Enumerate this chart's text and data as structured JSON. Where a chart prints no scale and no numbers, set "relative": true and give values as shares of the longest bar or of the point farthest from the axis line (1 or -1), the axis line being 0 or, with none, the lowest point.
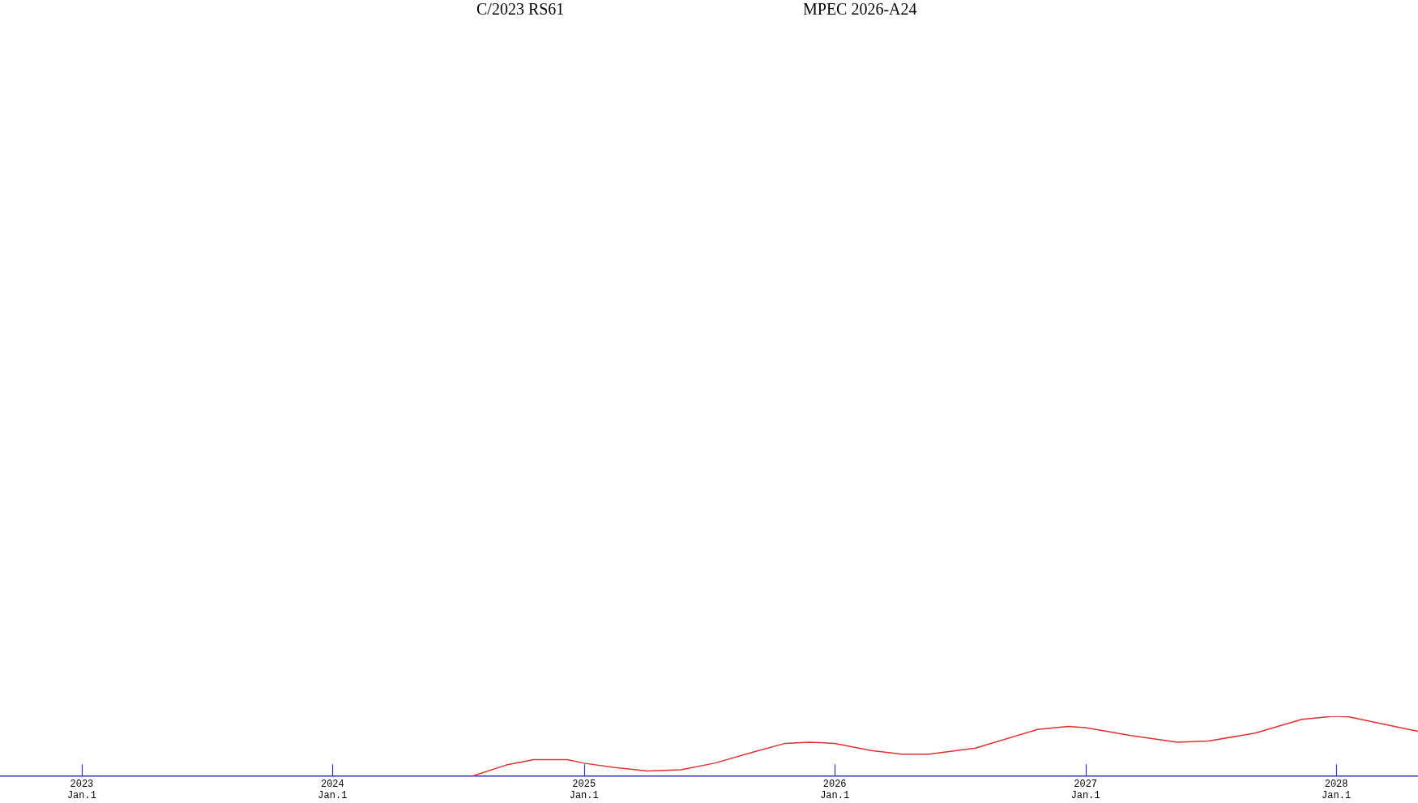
{
  "chart_data": {
    "type": "line",
    "title": "C/2023 RS61",
    "subtitle": "MPEC 2026-A24",
    "relative": true,
    "grid": false,
    "legend": false,
    "marker": "none",
    "line_style": "solid",
    "tick_labels": "x",
    "x": [
      "2024-07-21",
      "2024-09-10",
      "2024-10-20",
      "2024-12-08",
      "2025-01-01",
      "2025-02-13",
      "2025-04-03",
      "2025-05-22",
      "2025-07-10",
      "2025-09-06",
      "2025-10-21",
      "2025-11-25",
      "2026-01-01",
      "2026-02-23",
      "2026-04-09",
      "2026-05-18",
      "2026-07-25",
      "2026-10-23",
      "2026-12-07",
      "2027-01-01",
      "2027-03-08",
      "2027-05-15",
      "2027-06-29",
      "2027-09-05",
      "2027-11-12",
      "2027-12-28",
      "2028-01-20",
      "2028-03-06",
      "2028-04-29"
    ],
    "series": [
      {
        "color": "#e03030",
        "values": [
          0,
          0.19,
          0.28,
          0.28,
          0.22,
          0.15,
          0.09,
          0.11,
          0.22,
          0.41,
          0.55,
          0.57,
          0.55,
          0.43,
          0.37,
          0.37,
          0.47,
          0.78,
          0.83,
          0.81,
          0.68,
          0.57,
          0.59,
          0.72,
          0.95,
          1,
          0.99,
          0.88,
          0.75
        ]
      }
    ],
    "xlim": [
      "2022-09-04",
      "2028-04-29"
    ],
    "xticks": [
      {
        "value": "2023-01-01",
        "label": "2023\nJan.1"
      },
      {
        "value": "2024-01-01",
        "label": "2024\nJan.1"
      },
      {
        "value": "2025-01-01",
        "label": "2025\nJan.1"
      },
      {
        "value": "2026-01-01",
        "label": "2026\nJan.1"
      },
      {
        "value": "2027-01-01",
        "label": "2027\nJan.1"
      },
      {
        "value": "2028-01-01",
        "label": "2028\nJan.1"
      }
    ]
  }
}
